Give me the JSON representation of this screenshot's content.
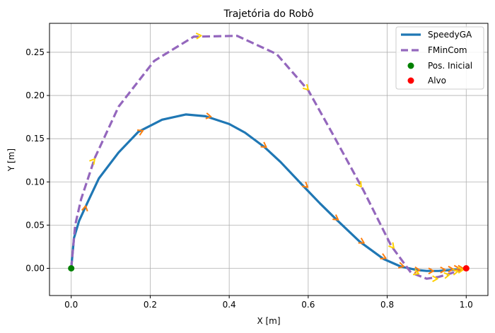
{
  "chart_data": {
    "type": "line",
    "title": "Trajetória do Robô",
    "xlabel": "X [m]",
    "ylabel": "Y [m]",
    "xlim": [
      -0.055,
      1.055
    ],
    "ylim": [
      -0.0315,
      0.2835
    ],
    "x_ticks": [
      0.0,
      0.2,
      0.4,
      0.6,
      0.8,
      1.0
    ],
    "x_tick_labels": [
      "0.0",
      "0.2",
      "0.4",
      "0.6",
      "0.8",
      "1.0"
    ],
    "y_ticks": [
      0.0,
      0.05,
      0.1,
      0.15,
      0.2,
      0.25
    ],
    "y_tick_labels": [
      "0.00",
      "0.05",
      "0.10",
      "0.15",
      "0.20",
      "0.25"
    ],
    "grid": true,
    "legend_position": "top-right",
    "series": [
      {
        "name": "SpeedyGA",
        "style": "solid",
        "color": "#1f77b4",
        "x": [
          0.0,
          0.007,
          0.02,
          0.04,
          0.07,
          0.12,
          0.17,
          0.23,
          0.29,
          0.34,
          0.4,
          0.44,
          0.49,
          0.53,
          0.59,
          0.63,
          0.67,
          0.73,
          0.79,
          0.835,
          0.875,
          0.9,
          0.93,
          0.96,
          0.99,
          1.0
        ],
        "y": [
          0.0,
          0.035,
          0.055,
          0.075,
          0.104,
          0.134,
          0.158,
          0.172,
          0.178,
          0.176,
          0.167,
          0.157,
          0.14,
          0.123,
          0.094,
          0.075,
          0.057,
          0.031,
          0.011,
          0.002,
          -0.002,
          -0.003,
          -0.003,
          -0.002,
          -0.001,
          0.0
        ]
      },
      {
        "name": "FMinCom",
        "style": "dashed",
        "color": "#9467bd",
        "x": [
          0.0,
          0.01,
          0.025,
          0.06,
          0.12,
          0.21,
          0.31,
          0.42,
          0.52,
          0.6,
          0.66,
          0.74,
          0.81,
          0.86,
          0.9,
          0.93,
          0.96,
          0.98,
          1.0
        ],
        "y": [
          0.0,
          0.05,
          0.08,
          0.128,
          0.187,
          0.24,
          0.268,
          0.269,
          0.248,
          0.206,
          0.157,
          0.09,
          0.026,
          -0.005,
          -0.012,
          -0.01,
          -0.006,
          -0.003,
          0.0
        ]
      }
    ],
    "markers": [
      {
        "name": "Pos. Inicial",
        "color": "#008000",
        "x": 0.0,
        "y": 0.0
      },
      {
        "name": "Alvo",
        "color": "#ff0000",
        "x": 1.0,
        "y": 0.0
      }
    ],
    "heading_arrows": {
      "SpeedyGA": {
        "color": "#ff7f0e",
        "points": [
          [
            0.035,
            0.069,
            80
          ],
          [
            0.175,
            0.158,
            25
          ],
          [
            0.347,
            0.176,
            -10
          ],
          [
            0.488,
            0.142,
            -35
          ],
          [
            0.593,
            0.096,
            -40
          ],
          [
            0.67,
            0.058,
            -35
          ],
          [
            0.735,
            0.031,
            -30
          ],
          [
            0.79,
            0.013,
            -25
          ],
          [
            0.835,
            0.003,
            -15
          ],
          [
            0.875,
            -0.002,
            -5
          ],
          [
            0.91,
            -0.003,
            0
          ],
          [
            0.94,
            -0.002,
            0
          ],
          [
            0.96,
            -0.001,
            0
          ],
          [
            0.975,
            0.0,
            0
          ],
          [
            0.985,
            0.0,
            0
          ]
        ]
      },
      "FMinCom": {
        "color": "#ffd000",
        "points": [
          [
            0.055,
            0.124,
            50
          ],
          [
            0.322,
            0.269,
            5
          ],
          [
            0.595,
            0.209,
            -45
          ],
          [
            0.73,
            0.097,
            -55
          ],
          [
            0.812,
            0.026,
            -50
          ],
          [
            0.873,
            -0.005,
            -20
          ],
          [
            0.92,
            -0.012,
            0
          ],
          [
            0.95,
            -0.008,
            10
          ],
          [
            0.972,
            -0.004,
            10
          ],
          [
            0.985,
            -0.002,
            5
          ]
        ]
      }
    }
  }
}
